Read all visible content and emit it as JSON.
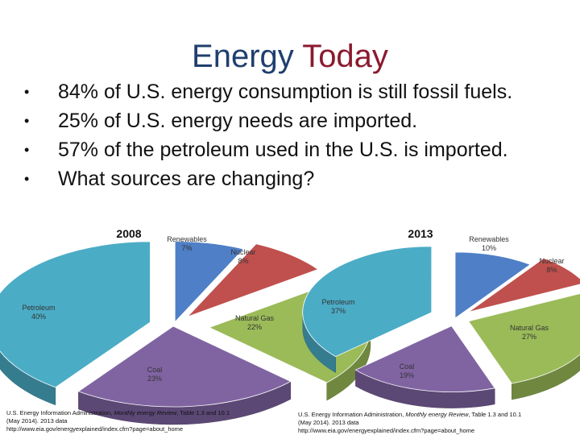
{
  "title": {
    "part1": "Energy",
    "part2": "Today"
  },
  "bullets": [
    "84% of U.S. energy consumption is still fossil fuels.",
    "25% of U.S. energy needs are imported.",
    "57% of the petroleum used in the U.S. is imported.",
    "What sources are changing?"
  ],
  "colors": {
    "title_primary": "#1f3f6e",
    "title_accent": "#8b1a2f",
    "renewables": "#4f7fc6",
    "nuclear": "#c0504d",
    "natural_gas": "#9bbb59",
    "coal": "#8064a2",
    "petroleum": "#4bacc6"
  },
  "chart_data": [
    {
      "type": "pie",
      "title": "2008",
      "categories": [
        "Renewables",
        "Nuclear",
        "Natural Gas",
        "Coal",
        "Petroleum"
      ],
      "values": [
        7,
        8,
        22,
        23,
        40
      ],
      "labels": [
        "Renewables\n7%",
        "Nuclear\n8%",
        "Natural Gas\n22%",
        "Coal\n23%",
        "Petroleum\n40%"
      ],
      "style": "3d-exploded",
      "source": {
        "prefix": "U.S. Energy Information Administration, ",
        "italic": "Monthly energy Review",
        "suffix": ", Table 1.3 and 10.1 (May 2014). 2013 data",
        "url": "http://www.eia.gov/energyexplained/index.cfm?page=about_home"
      }
    },
    {
      "type": "pie",
      "title": "2013",
      "categories": [
        "Renewables",
        "Nuclear",
        "Natural Gas",
        "Coal",
        "Petroleum"
      ],
      "values": [
        10,
        8,
        27,
        19,
        37
      ],
      "labels": [
        "Renewables\n10%",
        "Nuclear\n8%",
        "Natural Gas\n27%",
        "Coal\n19%",
        "Petroleum\n37%"
      ],
      "style": "3d-exploded",
      "source": {
        "prefix": "U.S. Energy Information Administration, ",
        "italic": "Monthly energy Review",
        "suffix": ", Table 1.3 and 10.1 (May 2014). 2013 data",
        "url": "http://www.eia.gov/energyexplained/index.cfm?page=about_home"
      }
    }
  ]
}
